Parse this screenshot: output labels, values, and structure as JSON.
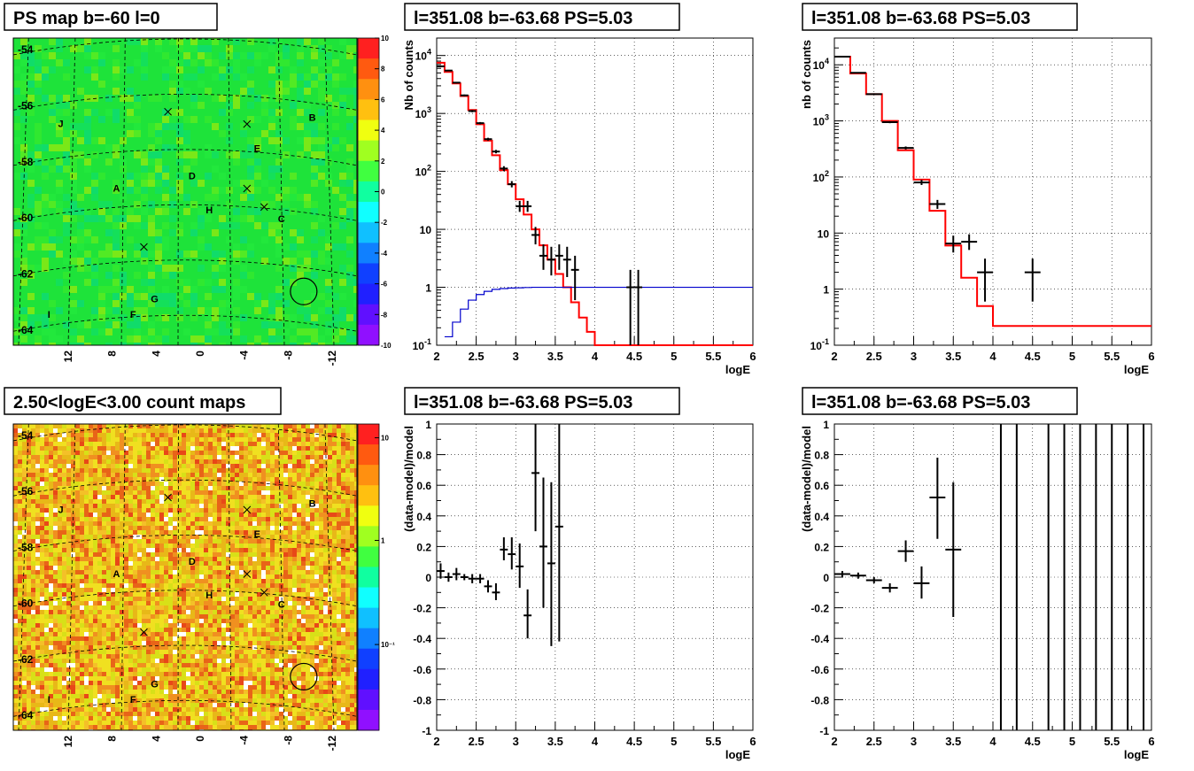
{
  "canvas": {
    "background": "#ffffff"
  },
  "map_panels": [
    {
      "id": "ps-map",
      "title": "PS map b=-60 l=0",
      "map_kind": "ps",
      "lat_ticks": [
        "-54",
        "-56",
        "-58",
        "-60",
        "-62",
        "-64"
      ],
      "lon_ticks": [
        "12",
        "8",
        "4",
        "0",
        "-4",
        "-8",
        "-12"
      ],
      "colorbar_ticks": [
        "10",
        "8",
        "6",
        "4",
        "2",
        "0",
        "-2",
        "-4",
        "-6",
        "-8",
        "-10"
      ],
      "source_labels": [
        "J",
        "B",
        "E",
        "D",
        "A",
        "H",
        "C",
        "G",
        "F",
        "I"
      ]
    },
    {
      "id": "count-map",
      "title": "2.50<logE<3.00 count maps",
      "map_kind": "counts",
      "lat_ticks": [
        "-54",
        "-56",
        "-58",
        "-60",
        "-62",
        "-64"
      ],
      "lon_ticks": [
        "12",
        "8",
        "4",
        "0",
        "-4",
        "-8",
        "-12"
      ],
      "colorbar_ticks": [
        "10",
        "1",
        "10⁻¹"
      ],
      "source_labels": [
        "J",
        "B",
        "E",
        "D",
        "A",
        "H",
        "C",
        "G",
        "F",
        "I"
      ]
    }
  ],
  "chart_data": [
    {
      "id": "spectrum-1",
      "type": "line",
      "title": "l=351.08 b=-63.68 PS=5.03",
      "xlabel": "logE",
      "ylabel": "Nb of counts",
      "xlim": [
        2,
        6
      ],
      "ylim": [
        0.1,
        20000
      ],
      "y_scale": "log",
      "grid": true,
      "x_ticks": [
        "2",
        "2.5",
        "3",
        "3.5",
        "4",
        "4.5",
        "5",
        "5.5",
        "6"
      ],
      "y_ticks": [
        "10^-1",
        "1",
        "10",
        "10^2",
        "10^3",
        "10^4"
      ],
      "series": [
        {
          "role": "model",
          "color": "#ff0000",
          "bin_width": 0.1,
          "bin_lo": [
            2.0,
            2.1,
            2.2,
            2.3,
            2.4,
            2.5,
            2.6,
            2.7,
            2.8,
            2.9,
            3.0,
            3.1,
            3.2,
            3.3,
            3.4,
            3.5,
            3.6,
            3.7,
            3.8,
            3.9,
            4.0
          ],
          "values": [
            7500,
            5200,
            3300,
            2000,
            1150,
            650,
            340,
            190,
            105,
            60,
            33,
            18,
            10,
            5.3,
            3.0,
            1.7,
            1.0,
            0.55,
            0.3,
            0.17,
            0.1
          ]
        },
        {
          "role": "background",
          "color": "#0000cc",
          "bin_width": 0.1,
          "bin_lo": [
            2.1,
            2.2,
            2.3,
            2.4,
            2.5,
            2.6,
            2.7,
            2.8,
            2.9,
            3.0,
            3.1,
            3.2,
            3.3
          ],
          "values": [
            0.14,
            0.25,
            0.42,
            0.6,
            0.75,
            0.85,
            0.92,
            0.95,
            0.97,
            0.98,
            0.99,
            1.0,
            1.0
          ],
          "flat_after": 1.0
        },
        {
          "role": "data",
          "color": "#000000",
          "points": [
            {
              "x": 2.05,
              "y": 6500,
              "lo": 6300,
              "hi": 6700,
              "xerr": 0.05
            },
            {
              "x": 2.15,
              "y": 5500,
              "lo": 5350,
              "hi": 5650,
              "xerr": 0.05
            },
            {
              "x": 2.25,
              "y": 3400,
              "lo": 3300,
              "hi": 3500,
              "xerr": 0.05
            },
            {
              "x": 2.35,
              "y": 2050,
              "lo": 1980,
              "hi": 2120,
              "xerr": 0.05
            },
            {
              "x": 2.45,
              "y": 1100,
              "lo": 1050,
              "hi": 1150,
              "xerr": 0.05
            },
            {
              "x": 2.55,
              "y": 680,
              "lo": 650,
              "hi": 710,
              "xerr": 0.05
            },
            {
              "x": 2.65,
              "y": 360,
              "lo": 340,
              "hi": 380,
              "xerr": 0.05
            },
            {
              "x": 2.75,
              "y": 220,
              "lo": 205,
              "hi": 235,
              "xerr": 0.05
            },
            {
              "x": 2.85,
              "y": 112,
              "lo": 101,
              "hi": 123,
              "xerr": 0.05
            },
            {
              "x": 2.95,
              "y": 60,
              "lo": 53,
              "hi": 68,
              "xerr": 0.05
            },
            {
              "x": 3.05,
              "y": 25,
              "lo": 20,
              "hi": 31,
              "xerr": 0.05
            },
            {
              "x": 3.15,
              "y": 25,
              "lo": 20,
              "hi": 31,
              "xerr": 0.05
            },
            {
              "x": 3.25,
              "y": 8,
              "lo": 5.5,
              "hi": 11,
              "xerr": 0.05
            },
            {
              "x": 3.35,
              "y": 3.5,
              "lo": 2.0,
              "hi": 5.5,
              "xerr": 0.05
            },
            {
              "x": 3.45,
              "y": 3.0,
              "lo": 1.6,
              "hi": 5.0,
              "xerr": 0.05
            },
            {
              "x": 3.55,
              "y": 3.5,
              "lo": 2.0,
              "hi": 5.5,
              "xerr": 0.05
            },
            {
              "x": 3.65,
              "y": 3.0,
              "lo": 1.5,
              "hi": 5.0,
              "xerr": 0.05
            },
            {
              "x": 3.75,
              "y": 2.0,
              "lo": 0.6,
              "hi": 3.5,
              "xerr": 0.05
            },
            {
              "x": 4.45,
              "y": 1.0,
              "lo": 0.1,
              "hi": 2.0,
              "xerr": 0.05
            },
            {
              "x": 4.55,
              "y": 1.0,
              "lo": 0.1,
              "hi": 2.0,
              "xerr": 0.05
            }
          ]
        }
      ]
    },
    {
      "id": "spectrum-2",
      "type": "line",
      "title": "l=351.08 b=-63.68 PS=5.03",
      "xlabel": "logE",
      "ylabel": "nb of counts",
      "xlim": [
        2,
        6
      ],
      "ylim": [
        0.1,
        30000
      ],
      "y_scale": "log",
      "grid": true,
      "x_ticks": [
        "2",
        "2.5",
        "3",
        "3.5",
        "4",
        "4.5",
        "5",
        "5.5",
        "6"
      ],
      "y_ticks": [
        "10^-1",
        "1",
        "10",
        "10^2",
        "10^3",
        "10^4"
      ],
      "series": [
        {
          "role": "model",
          "color": "#ff0000",
          "bin_width": 0.2,
          "bin_lo": [
            2.0,
            2.2,
            2.4,
            2.6,
            2.8,
            3.0,
            3.2,
            3.4,
            3.6,
            3.8,
            4.0
          ],
          "values": [
            14000,
            7000,
            3000,
            1000,
            300,
            90,
            25,
            6,
            1.6,
            0.5,
            0.22
          ]
        },
        {
          "role": "data",
          "color": "#000000",
          "points": [
            {
              "x": 2.1,
              "y": 14000,
              "lo": 13700,
              "hi": 14300,
              "xerr": 0.1
            },
            {
              "x": 2.3,
              "y": 7200,
              "lo": 7000,
              "hi": 7400,
              "xerr": 0.1
            },
            {
              "x": 2.5,
              "y": 3000,
              "lo": 2900,
              "hi": 3100,
              "xerr": 0.1
            },
            {
              "x": 2.7,
              "y": 950,
              "lo": 910,
              "hi": 990,
              "xerr": 0.1
            },
            {
              "x": 2.9,
              "y": 330,
              "lo": 310,
              "hi": 350,
              "xerr": 0.1
            },
            {
              "x": 3.1,
              "y": 80,
              "lo": 72,
              "hi": 89,
              "xerr": 0.1
            },
            {
              "x": 3.3,
              "y": 33,
              "lo": 27,
              "hi": 39,
              "xerr": 0.1
            },
            {
              "x": 3.5,
              "y": 6.5,
              "lo": 4.5,
              "hi": 9,
              "xerr": 0.1
            },
            {
              "x": 3.7,
              "y": 7,
              "lo": 5,
              "hi": 9.5,
              "xerr": 0.1
            },
            {
              "x": 3.9,
              "y": 2,
              "lo": 0.6,
              "hi": 3.5,
              "xerr": 0.1
            },
            {
              "x": 4.5,
              "y": 2,
              "lo": 0.6,
              "hi": 3.5,
              "xerr": 0.1
            }
          ]
        }
      ]
    },
    {
      "id": "residual-1",
      "type": "scatter",
      "title": "l=351.08 b=-63.68 PS=5.03",
      "xlabel": "logE",
      "ylabel": "(data-model)/model",
      "xlim": [
        2,
        6
      ],
      "ylim": [
        -1,
        1
      ],
      "grid": true,
      "x_ticks": [
        "2",
        "2.5",
        "3",
        "3.5",
        "4",
        "4.5",
        "5",
        "5.5",
        "6"
      ],
      "y_ticks": [
        "-1",
        "-0.8",
        "-0.6",
        "-0.4",
        "-0.2",
        "0",
        "0.2",
        "0.4",
        "0.6",
        "0.8",
        "1"
      ],
      "series": [
        {
          "role": "residual",
          "color": "#000000",
          "points": [
            {
              "x": 2.05,
              "y": 0.04,
              "lo": -0.01,
              "hi": 0.09,
              "xerr": 0.05
            },
            {
              "x": 2.15,
              "y": 0.0,
              "lo": -0.03,
              "hi": 0.03,
              "xerr": 0.05
            },
            {
              "x": 2.25,
              "y": 0.02,
              "lo": -0.02,
              "hi": 0.06,
              "xerr": 0.05
            },
            {
              "x": 2.35,
              "y": 0.0,
              "lo": -0.02,
              "hi": 0.02,
              "xerr": 0.05
            },
            {
              "x": 2.45,
              "y": -0.01,
              "lo": -0.04,
              "hi": 0.02,
              "xerr": 0.05
            },
            {
              "x": 2.55,
              "y": -0.01,
              "lo": -0.04,
              "hi": 0.02,
              "xerr": 0.05
            },
            {
              "x": 2.65,
              "y": -0.06,
              "lo": -0.1,
              "hi": -0.02,
              "xerr": 0.05
            },
            {
              "x": 2.75,
              "y": -0.1,
              "lo": -0.15,
              "hi": -0.04,
              "xerr": 0.05
            },
            {
              "x": 2.85,
              "y": 0.18,
              "lo": 0.11,
              "hi": 0.26,
              "xerr": 0.05
            },
            {
              "x": 2.95,
              "y": 0.15,
              "lo": 0.05,
              "hi": 0.26,
              "xerr": 0.05
            },
            {
              "x": 3.05,
              "y": 0.07,
              "lo": -0.07,
              "hi": 0.22,
              "xerr": 0.05
            },
            {
              "x": 3.15,
              "y": -0.25,
              "lo": -0.4,
              "hi": -0.08,
              "xerr": 0.05
            },
            {
              "x": 3.25,
              "y": 0.68,
              "lo": 0.3,
              "hi": 1.0,
              "xerr": 0.05
            },
            {
              "x": 3.35,
              "y": 0.2,
              "lo": -0.2,
              "hi": 0.65,
              "xerr": 0.05
            },
            {
              "x": 3.45,
              "y": 0.09,
              "lo": -0.45,
              "hi": 0.62,
              "xerr": 0.05
            },
            {
              "x": 3.55,
              "y": 0.33,
              "lo": -0.42,
              "hi": 1.0,
              "xerr": 0.05
            }
          ]
        }
      ]
    },
    {
      "id": "residual-2",
      "type": "scatter",
      "title": "l=351.08 b=-63.68 PS=5.03",
      "xlabel": "logE",
      "ylabel": "(data-model)/model",
      "xlim": [
        2,
        6
      ],
      "ylim": [
        -1,
        1
      ],
      "grid": true,
      "x_ticks": [
        "2",
        "2.5",
        "3",
        "3.5",
        "4",
        "4.5",
        "5",
        "5.5",
        "6"
      ],
      "y_ticks": [
        "-1",
        "-0.8",
        "-0.6",
        "-0.4",
        "-0.2",
        "0",
        "0.2",
        "0.4",
        "0.6",
        "0.8",
        "1"
      ],
      "series": [
        {
          "role": "residual",
          "color": "#000000",
          "points": [
            {
              "x": 2.1,
              "y": 0.02,
              "lo": 0.0,
              "hi": 0.04,
              "xerr": 0.1
            },
            {
              "x": 2.3,
              "y": 0.01,
              "lo": -0.01,
              "hi": 0.03,
              "xerr": 0.1
            },
            {
              "x": 2.5,
              "y": -0.02,
              "lo": -0.04,
              "hi": 0.0,
              "xerr": 0.1
            },
            {
              "x": 2.7,
              "y": -0.07,
              "lo": -0.1,
              "hi": -0.04,
              "xerr": 0.1
            },
            {
              "x": 2.9,
              "y": 0.17,
              "lo": 0.1,
              "hi": 0.24,
              "xerr": 0.1
            },
            {
              "x": 3.1,
              "y": -0.04,
              "lo": -0.14,
              "hi": 0.07,
              "xerr": 0.1
            },
            {
              "x": 3.3,
              "y": 0.52,
              "lo": 0.25,
              "hi": 0.78,
              "xerr": 0.1
            },
            {
              "x": 3.5,
              "y": 0.18,
              "lo": -0.26,
              "hi": 0.62,
              "xerr": 0.1
            }
          ]
        },
        {
          "role": "full-range-errors",
          "color": "#000000",
          "x": [
            4.1,
            4.3,
            4.7,
            4.9,
            5.1,
            5.3,
            5.5,
            5.7,
            5.9
          ]
        }
      ]
    }
  ]
}
